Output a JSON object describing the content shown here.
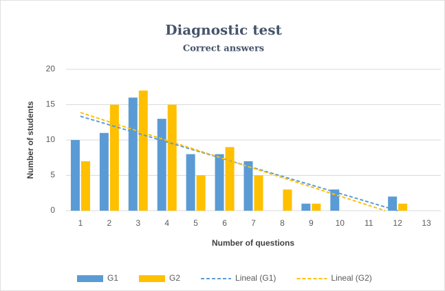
{
  "chart_data": {
    "type": "bar",
    "title": "Diagnostic test",
    "subtitle": "Correct answers",
    "x_label": "Number of questions",
    "y_label": "Number of students",
    "categories": [
      "1",
      "2",
      "3",
      "4",
      "5",
      "6",
      "7",
      "8",
      "9",
      "10",
      "11",
      "12",
      "13"
    ],
    "series": [
      {
        "name": "G1",
        "color": "#5b9bd5",
        "values": [
          10,
          11,
          16,
          13,
          8,
          8,
          7,
          0,
          1,
          3,
          0,
          2,
          0
        ],
        "trendline": {
          "name": "Lineal (G1)",
          "color": "#5b9bd5"
        }
      },
      {
        "name": "G2",
        "color": "#ffc000",
        "values": [
          7,
          15,
          17,
          15,
          5,
          9,
          5,
          3,
          1,
          0,
          0,
          1,
          0
        ],
        "trendline": {
          "name": "Lineal (G2)",
          "color": "#ffc000"
        }
      }
    ],
    "ylim": [
      0,
      20
    ],
    "yticks": [
      0,
      5,
      10,
      15,
      20
    ],
    "grid": true,
    "legend": "bottom"
  }
}
